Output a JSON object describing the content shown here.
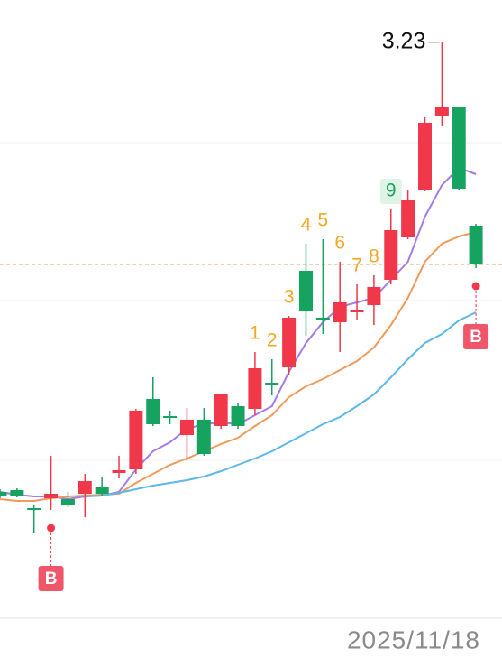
{
  "chart_data": {
    "type": "candlestick",
    "open": [
      2.732,
      2.734,
      2.714,
      2.725,
      2.724,
      2.73,
      2.737,
      2.753,
      2.757,
      2.835,
      2.816,
      2.795,
      2.812,
      2.805,
      2.827,
      2.824,
      2.853,
      2.87,
      2.977,
      2.925,
      2.92,
      2.931,
      2.939,
      2.967,
      3.014,
      3.067,
      3.149,
      3.158,
      3.027
    ],
    "high": [
      2.735,
      2.736,
      2.717,
      2.772,
      2.732,
      2.752,
      2.749,
      2.772,
      2.824,
      2.859,
      2.822,
      2.825,
      2.825,
      2.84,
      2.83,
      2.887,
      2.879,
      2.927,
      3.007,
      3.012,
      2.987,
      2.962,
      2.972,
      3.045,
      3.067,
      3.147,
      3.23,
      3.159,
      3.029
    ],
    "low": [
      2.725,
      2.726,
      2.687,
      2.712,
      2.715,
      2.704,
      2.727,
      2.747,
      2.752,
      2.805,
      2.807,
      2.767,
      2.772,
      2.802,
      2.802,
      2.817,
      2.839,
      2.862,
      2.905,
      2.907,
      2.887,
      2.922,
      2.917,
      2.962,
      3.012,
      3.065,
      3.137,
      3.067,
      2.98
    ],
    "close": [
      2.728,
      2.728,
      2.712,
      2.73,
      2.717,
      2.744,
      2.73,
      2.756,
      2.822,
      2.807,
      2.814,
      2.812,
      2.774,
      2.84,
      2.805,
      2.869,
      2.851,
      2.925,
      2.932,
      2.922,
      2.942,
      2.933,
      2.959,
      3.022,
      3.055,
      3.141,
      3.158,
      3.068,
      2.984
    ],
    "up_color": "#f0384a",
    "down_color": "#16a35f",
    "series": [
      {
        "color": "#a57be8",
        "values": [
          2.732,
          2.729,
          2.727,
          2.727,
          2.724,
          2.727,
          2.728,
          2.732,
          2.757,
          2.777,
          2.787,
          2.802,
          2.807,
          2.809,
          2.807,
          2.817,
          2.827,
          2.865,
          2.897,
          2.92,
          2.937,
          2.942,
          2.947,
          2.967,
          2.987,
          3.037,
          3.072,
          3.091,
          3.084
        ]
      },
      {
        "color": "#f29a5a",
        "values": [
          2.724,
          2.722,
          2.722,
          2.725,
          2.727,
          2.728,
          2.729,
          2.73,
          2.742,
          2.752,
          2.762,
          2.769,
          2.777,
          2.785,
          2.792,
          2.805,
          2.817,
          2.837,
          2.849,
          2.857,
          2.867,
          2.877,
          2.892,
          2.917,
          2.947,
          2.987,
          3.007,
          3.015,
          3.02
        ]
      },
      {
        "color": "#5bb8e8",
        "values": [
          null,
          null,
          null,
          null,
          null,
          2.727,
          2.728,
          2.731,
          2.735,
          2.739,
          2.742,
          2.745,
          2.749,
          2.755,
          2.762,
          2.769,
          2.777,
          2.787,
          2.797,
          2.807,
          2.815,
          2.827,
          2.84,
          2.859,
          2.879,
          2.897,
          2.907,
          2.922,
          2.931
        ]
      }
    ],
    "td_count": [
      null,
      null,
      null,
      null,
      null,
      null,
      null,
      null,
      null,
      null,
      null,
      null,
      null,
      null,
      null,
      1,
      2,
      3,
      4,
      5,
      6,
      7,
      8,
      9,
      null,
      null,
      null,
      null,
      null
    ],
    "signals": [
      null,
      null,
      null,
      "B",
      null,
      null,
      null,
      null,
      null,
      null,
      null,
      null,
      null,
      null,
      null,
      null,
      null,
      null,
      null,
      null,
      null,
      null,
      null,
      null,
      null,
      null,
      null,
      null,
      "B"
    ],
    "ylim": [
      2.592,
      3.277
    ],
    "date_label": "2025/11/18"
  }
}
